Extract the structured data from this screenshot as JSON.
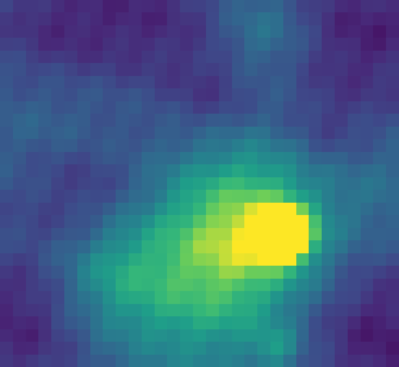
{
  "image": {
    "kind": "pixelated intensity heatmap",
    "colormap": "viridis",
    "grid": {
      "columns": 31,
      "rows": 29
    },
    "intensity_features": [
      {
        "name": "brightest-peak",
        "col": 22,
        "row": 18,
        "sigma": 1.15,
        "amplitude": 0.88
      },
      {
        "name": "peak-shoulder",
        "col": 21,
        "row": 18,
        "sigma": 1.45,
        "amplitude": 0.48
      },
      {
        "name": "central-glow",
        "col": 19,
        "row": 17,
        "sigma": 4.2,
        "amplitude": 0.45
      },
      {
        "name": "lower-glow",
        "col": 15,
        "row": 22,
        "sigma": 5.0,
        "amplitude": 0.34
      },
      {
        "name": "left-middle-glow",
        "col": 8,
        "row": 21,
        "sigma": 3.2,
        "amplitude": 0.22
      },
      {
        "name": "bottom-spot",
        "col": 21,
        "row": 27,
        "sigma": 1.2,
        "amplitude": 0.2
      },
      {
        "name": "upper-glow",
        "col": 20,
        "row": 2,
        "sigma": 2.5,
        "amplitude": 0.16
      },
      {
        "name": "left-upper-glow",
        "col": 4,
        "row": 8,
        "sigma": 3.8,
        "amplitude": 0.1
      },
      {
        "name": "right-glow",
        "col": 29,
        "row": 14,
        "sigma": 3.0,
        "amplitude": 0.08
      }
    ],
    "dark_features": [
      {
        "name": "top-left-low",
        "col": 4,
        "row": 2,
        "sigma": 4.0,
        "amplitude": 0.2
      },
      {
        "name": "top-middle-low",
        "col": 12,
        "row": 1,
        "sigma": 4.0,
        "amplitude": 0.16
      },
      {
        "name": "top-right-low",
        "col": 28,
        "row": 2,
        "sigma": 4.5,
        "amplitude": 0.22
      },
      {
        "name": "left-middle-low",
        "col": 6,
        "row": 15,
        "sigma": 3.5,
        "amplitude": 0.16
      },
      {
        "name": "bottom-left-low",
        "col": 1,
        "row": 25,
        "sigma": 4.0,
        "amplitude": 0.22
      },
      {
        "name": "bottom-right-low",
        "col": 29,
        "row": 26,
        "sigma": 4.2,
        "amplitude": 0.24
      },
      {
        "name": "upper-center-low",
        "col": 16,
        "row": 7,
        "sigma": 2.4,
        "amplitude": 0.12
      },
      {
        "name": "right-center-low",
        "col": 25,
        "row": 10,
        "sigma": 2.4,
        "amplitude": 0.1
      }
    ],
    "colors": {
      "deep_purple": "#440154",
      "purple": "#482878",
      "indigo": "#3e4989",
      "blue": "#31688e",
      "teal": "#26828e",
      "green": "#1f9e89",
      "lime_green": "#35b779",
      "yellow_green": "#6ece58",
      "yellow": "#fde725"
    }
  }
}
